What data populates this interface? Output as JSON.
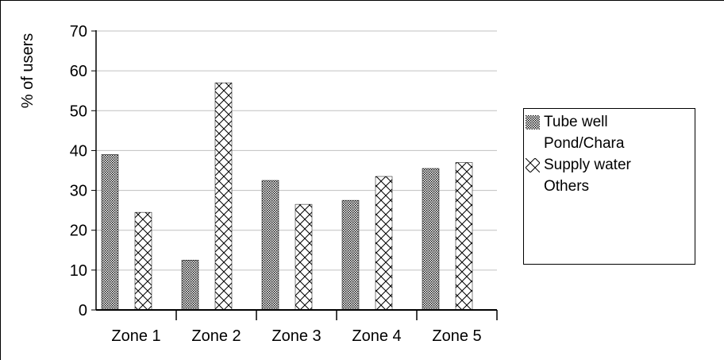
{
  "chart_data": {
    "type": "bar",
    "title": "",
    "xlabel": "",
    "ylabel": "% of users",
    "ylim": [
      0,
      70
    ],
    "yticks": [
      0,
      10,
      20,
      30,
      40,
      50,
      60,
      70
    ],
    "grid": true,
    "legend_position": "right",
    "categories": [
      "Zone 1",
      "Zone 2",
      "Zone 3",
      "Zone 4",
      "Zone 5"
    ],
    "series": [
      {
        "name": "Tube well",
        "pattern": "dots",
        "values": [
          39,
          12.5,
          32.5,
          27.5,
          35.5
        ]
      },
      {
        "name": "Pond/Chara",
        "pattern": "none",
        "values": [
          0,
          0,
          0,
          0,
          0
        ]
      },
      {
        "name": "Supply water",
        "pattern": "crosshatch",
        "values": [
          24.5,
          57,
          26.5,
          33.5,
          37
        ]
      },
      {
        "name": "Others",
        "pattern": "none",
        "values": [
          0,
          0,
          0,
          0,
          0
        ]
      }
    ],
    "colors": {
      "axis": "#000000",
      "grid": "#c0c0c0",
      "ink": "#000000"
    }
  }
}
